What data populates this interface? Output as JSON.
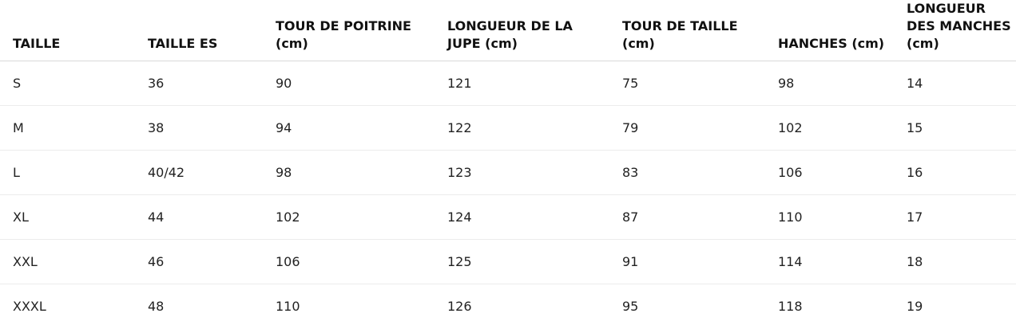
{
  "size_table": {
    "headers": [
      "TAILLE",
      "TAILLE ES",
      "TOUR DE POITRINE (cm)",
      "LONGUEUR DE LA JUPE (cm)",
      "TOUR DE TAILLE (cm)",
      "HANCHES (cm)",
      "LONGUEUR DES MANCHES (cm)"
    ],
    "rows": [
      [
        "S",
        "36",
        "90",
        "121",
        "75",
        "98",
        "14"
      ],
      [
        "M",
        "38",
        "94",
        "122",
        "79",
        "102",
        "15"
      ],
      [
        "L",
        "40/42",
        "98",
        "123",
        "83",
        "106",
        "16"
      ],
      [
        "XL",
        "44",
        "102",
        "124",
        "87",
        "110",
        "17"
      ],
      [
        "XXL",
        "46",
        "106",
        "125",
        "91",
        "114",
        "18"
      ],
      [
        "XXXL",
        "48",
        "110",
        "126",
        "95",
        "118",
        "19"
      ]
    ]
  }
}
